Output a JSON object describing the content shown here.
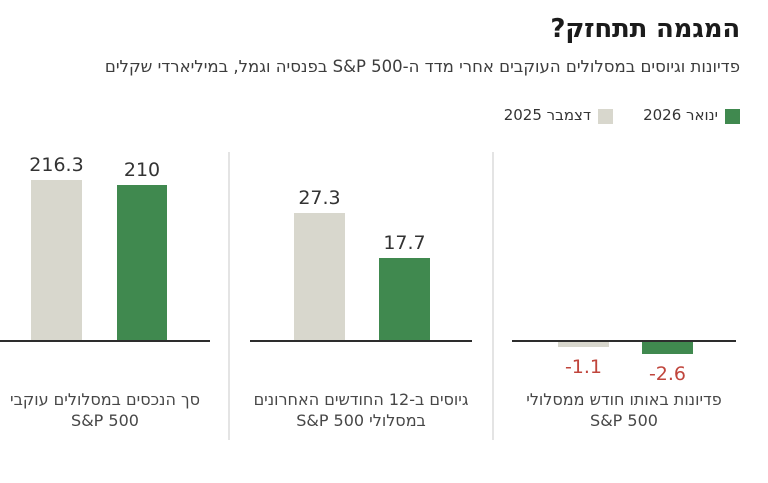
{
  "header": {
    "title": "המגמה תתחזק?",
    "subtitle": "פדיונות וגיוסים במסלולים העוקבים אחרי מדד ה-S&P 500 בפנסיה וגמל, במיליארדי שקלים"
  },
  "legend": {
    "items": [
      {
        "label": "ינואר 2026",
        "color": "#40894f"
      },
      {
        "label": "דצמבר 2025",
        "color": "#d8d7cd"
      }
    ]
  },
  "colors": {
    "axis": "#2d2d2d",
    "positive_label": "#333333",
    "negative_label": "#c0453c",
    "divider": "#e4e4e4",
    "bar_gray": "#d8d7cd",
    "bar_green": "#40894f"
  },
  "chart_data": {
    "type": "bar",
    "title": "המגמה תתחזק?",
    "subtitle": "פדיונות וגיוסים במסלולים העוקבים אחרי מדד ה-S&P 500 בפנסיה וגמל, במיליארדי שקלים",
    "legend_position": "top-right",
    "grid": false,
    "series": [
      {
        "name": "דצמבר 2025",
        "color": "#d8d7cd"
      },
      {
        "name": "ינואר 2026",
        "color": "#40894f"
      }
    ],
    "groups": [
      {
        "label_line1": "סך הנכסים במסלולים עוקבי",
        "label_line2": "S&P 500",
        "values": [
          216.3,
          210
        ],
        "value_labels": [
          "216.3",
          "210"
        ]
      },
      {
        "label_line1": "גיוסים ב-12 החודשים האחרונים",
        "label_line2": "במסלולי S&P 500",
        "values": [
          27.3,
          17.7
        ],
        "value_labels": [
          "27.3",
          "17.7"
        ]
      },
      {
        "label_line1": "פדיונות באותו חודש ממסלולי",
        "label_line2": "S&P 500",
        "values": [
          -1.1,
          -2.6
        ],
        "value_labels": [
          "-1.1",
          "-2.6"
        ]
      }
    ]
  }
}
